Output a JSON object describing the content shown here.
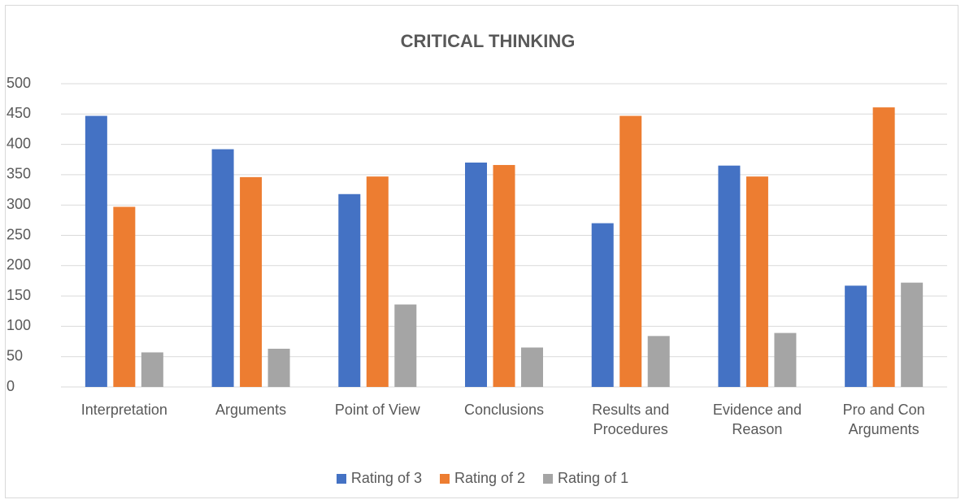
{
  "chart_data": {
    "type": "bar",
    "title": "CRITICAL THINKING",
    "categories": [
      "Interpretation",
      "Arguments",
      "Point of View",
      "Conclusions",
      "Results and Procedures",
      "Evidence and Reason",
      "Pro and Con Arguments"
    ],
    "series": [
      {
        "name": "Rating of 3",
        "color": "#4472c4",
        "values": [
          447,
          392,
          318,
          370,
          270,
          365,
          167
        ]
      },
      {
        "name": "Rating of 2",
        "color": "#ed7d31",
        "values": [
          297,
          346,
          347,
          366,
          447,
          347,
          461
        ]
      },
      {
        "name": "Rating of 1",
        "color": "#a5a5a5",
        "values": [
          57,
          63,
          136,
          65,
          84,
          89,
          172
        ]
      }
    ],
    "ylim": [
      0,
      500
    ],
    "yticks": [
      0,
      50,
      100,
      150,
      200,
      250,
      300,
      350,
      400,
      450,
      500
    ],
    "grid": true,
    "legend": "bottom"
  }
}
